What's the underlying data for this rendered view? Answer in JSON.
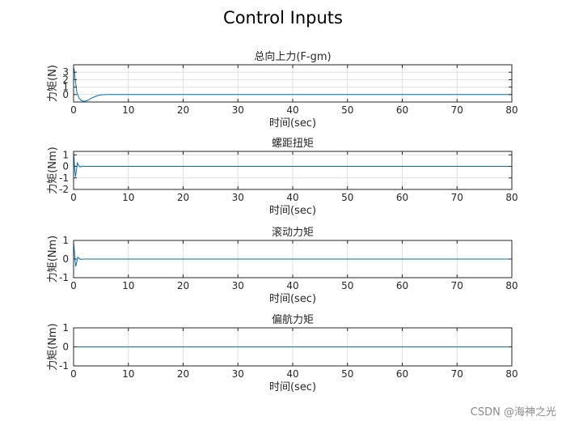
{
  "figure": {
    "title": "Control Inputs",
    "watermark": "CSDN @海神之光"
  },
  "colors": {
    "line": "#0072bd",
    "grid": "#dfdfdf",
    "axis": "#262626"
  },
  "chart_data": [
    {
      "type": "line",
      "title": "总向上力(F-gm)",
      "xlabel": "时间(sec)",
      "ylabel": "力矩(N)",
      "xlim": [
        0,
        80
      ],
      "ylim": [
        -1,
        4
      ],
      "xticks": [
        0,
        10,
        20,
        30,
        40,
        50,
        60,
        70,
        80
      ],
      "yticks": [
        0,
        1,
        2,
        3
      ],
      "grid": true,
      "series": [
        {
          "x": [
            0,
            0.1,
            0.3,
            0.6,
            1.0,
            1.5,
            2.0,
            2.5,
            3.0,
            3.5,
            4.0,
            4.5,
            5.0,
            5.5,
            6.0,
            8.0,
            20,
            40,
            60,
            80
          ],
          "y": [
            3.6,
            3.4,
            2.0,
            0.3,
            -0.5,
            -0.85,
            -0.9,
            -0.8,
            -0.6,
            -0.4,
            -0.25,
            -0.12,
            -0.05,
            -0.02,
            0.0,
            0.0,
            0.0,
            0.0,
            0.0,
            0.0
          ]
        }
      ]
    },
    {
      "type": "line",
      "title": "螺距扭矩",
      "xlabel": "时间(sec)",
      "ylabel": "力矩(Nm)",
      "xlim": [
        0,
        80
      ],
      "ylim": [
        -2,
        1.3
      ],
      "xticks": [
        0,
        10,
        20,
        30,
        40,
        50,
        60,
        70,
        80
      ],
      "yticks": [
        -2,
        -1,
        0,
        1
      ],
      "grid": true,
      "series": [
        {
          "x": [
            0,
            0.1,
            0.2,
            0.35,
            0.5,
            0.7,
            0.9,
            1.2,
            1.6,
            2.0,
            5,
            20,
            40,
            60,
            80
          ],
          "y": [
            1.2,
            0.6,
            -0.2,
            -0.9,
            -0.4,
            0.3,
            0.1,
            -0.05,
            0.02,
            0.0,
            0.0,
            0.0,
            0.0,
            0.0,
            0.0
          ]
        }
      ]
    },
    {
      "type": "line",
      "title": "滚动力矩",
      "xlabel": "时间(sec)",
      "ylabel": "力矩(Nm)",
      "xlim": [
        0,
        80
      ],
      "ylim": [
        -1,
        1
      ],
      "xticks": [
        0,
        10,
        20,
        30,
        40,
        50,
        60,
        70,
        80
      ],
      "yticks": [
        -1,
        0,
        1
      ],
      "grid": true,
      "series": [
        {
          "x": [
            0,
            0.1,
            0.25,
            0.4,
            0.55,
            0.75,
            1.0,
            1.3,
            1.7,
            2.2,
            5,
            20,
            40,
            60,
            80
          ],
          "y": [
            0.9,
            0.6,
            0.0,
            -0.4,
            -0.2,
            0.1,
            0.04,
            -0.02,
            0.0,
            0.0,
            0.0,
            0.0,
            0.0,
            0.0,
            0.0
          ]
        }
      ]
    },
    {
      "type": "line",
      "title": "偏航力矩",
      "xlabel": "时间(sec)",
      "ylabel": "力矩(Nm)",
      "xlim": [
        0,
        80
      ],
      "ylim": [
        -1,
        1
      ],
      "xticks": [
        0,
        10,
        20,
        30,
        40,
        50,
        60,
        70,
        80
      ],
      "yticks": [
        -1,
        0,
        1
      ],
      "grid": true,
      "series": [
        {
          "x": [
            0,
            80
          ],
          "y": [
            0,
            0
          ]
        }
      ]
    }
  ]
}
